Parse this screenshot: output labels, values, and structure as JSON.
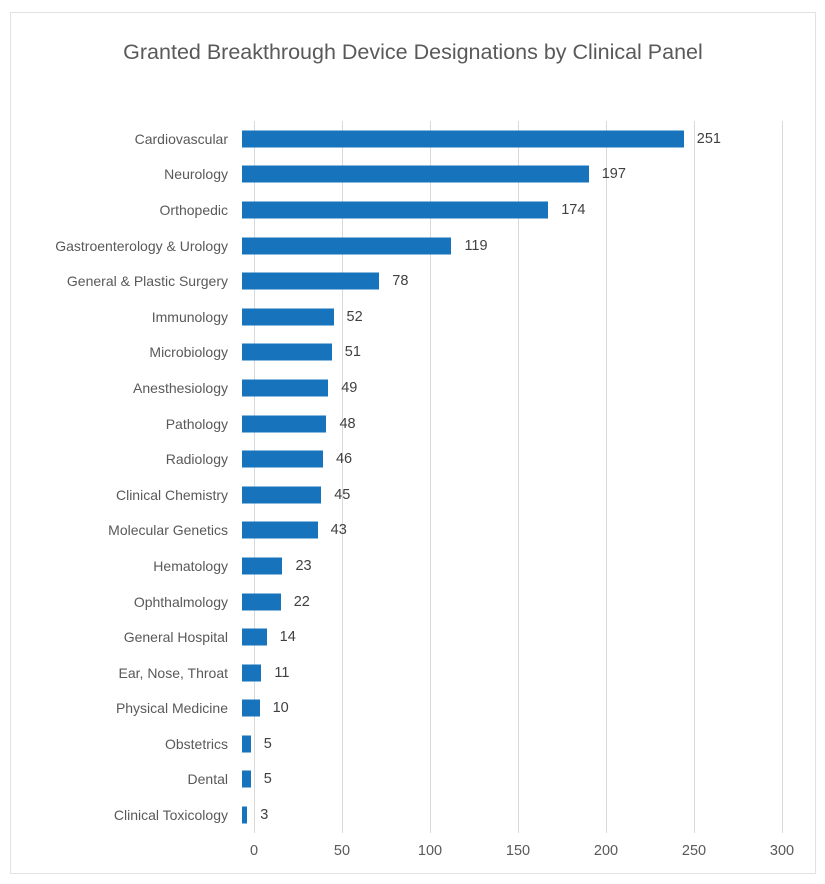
{
  "chart_data": {
    "type": "bar",
    "orientation": "horizontal",
    "title": "Granted Breakthrough Device Designations by Clinical Panel",
    "categories": [
      "Cardiovascular",
      "Neurology",
      "Orthopedic",
      "Gastroenterology & Urology",
      "General & Plastic Surgery",
      "Immunology",
      "Microbiology",
      "Anesthesiology",
      "Pathology",
      "Radiology",
      "Clinical Chemistry",
      "Molecular Genetics",
      "Hematology",
      "Ophthalmology",
      "General Hospital",
      "Ear, Nose, Throat",
      "Physical Medicine",
      "Obstetrics",
      "Dental",
      "Clinical Toxicology"
    ],
    "values": [
      251,
      197,
      174,
      119,
      78,
      52,
      51,
      49,
      48,
      46,
      45,
      43,
      23,
      22,
      14,
      11,
      10,
      5,
      5,
      3
    ],
    "xlabel": "",
    "ylabel": "",
    "xlim": [
      0,
      300
    ],
    "xticks": [
      0,
      50,
      100,
      150,
      200,
      250,
      300
    ],
    "grid": "vertical",
    "legend": "none",
    "data_labels": "outside-end",
    "colors": {
      "bar": "#1673bc",
      "gridline": "#d9d9d9",
      "category_label": "#595959",
      "value_label": "#404040",
      "title": "#595959",
      "panel_border": "#e2e2e2",
      "background": "#ffffff"
    }
  }
}
